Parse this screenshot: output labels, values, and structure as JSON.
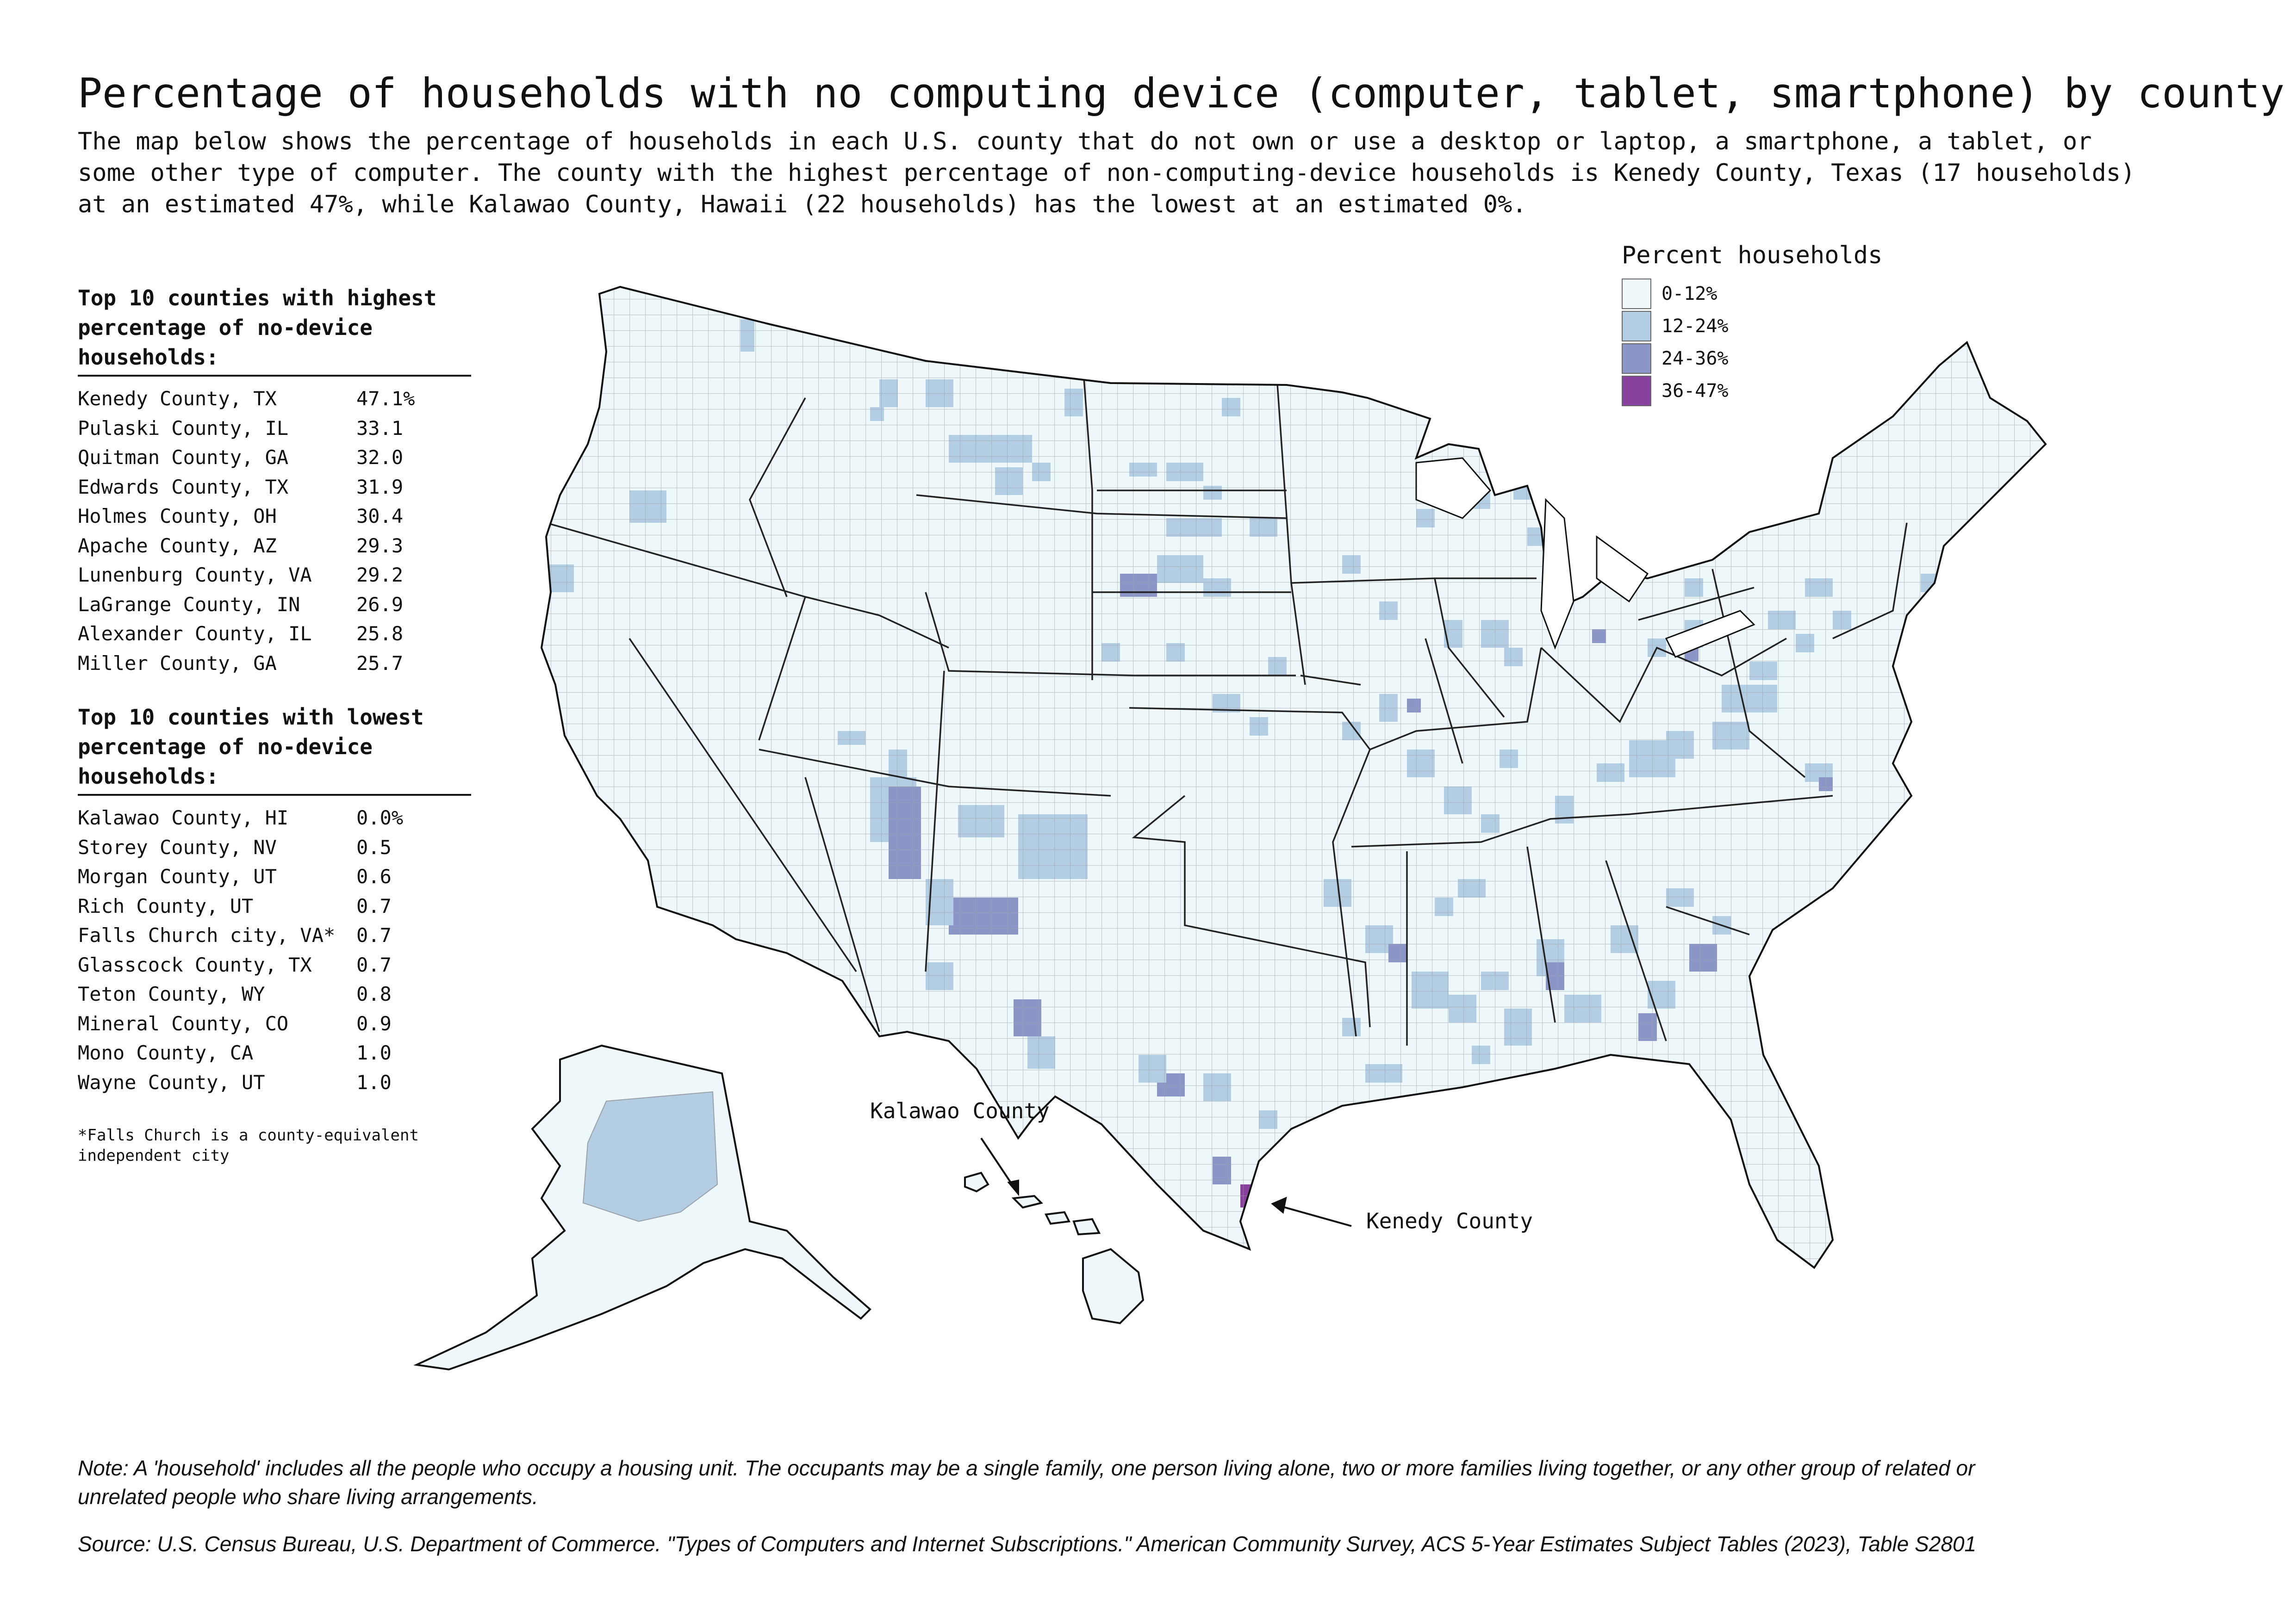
{
  "title": "Percentage of households with no computing device (computer, tablet, smartphone) by county",
  "subtitle_lines": [
    "The map below shows the percentage of households in each U.S. county that do not own or use a desktop or laptop, a smartphone, a tablet, or",
    "some other type of computer. The county with the highest percentage of non-computing-device households is Kenedy County, Texas (17 households)",
    "at an estimated 47%, while Kalawao County, Hawaii (22 households) has the lowest at an estimated 0%."
  ],
  "highest": {
    "heading_lines": [
      "Top 10 counties with highest",
      "percentage of no-device",
      "households:"
    ],
    "rows": [
      {
        "county": "Kenedy County, TX",
        "value": "47.1%"
      },
      {
        "county": "Pulaski County, IL",
        "value": "33.1"
      },
      {
        "county": "Quitman County, GA",
        "value": "32.0"
      },
      {
        "county": "Edwards County, TX",
        "value": "31.9"
      },
      {
        "county": "Holmes County, OH",
        "value": "30.4"
      },
      {
        "county": "Apache County, AZ",
        "value": "29.3"
      },
      {
        "county": "Lunenburg County, VA",
        "value": "29.2"
      },
      {
        "county": "LaGrange County, IN",
        "value": "26.9"
      },
      {
        "county": "Alexander County, IL",
        "value": "25.8"
      },
      {
        "county": "Miller County, GA",
        "value": "25.7"
      }
    ]
  },
  "lowest": {
    "heading_lines": [
      "Top 10 counties with lowest",
      "percentage of no-device",
      "households:"
    ],
    "rows": [
      {
        "county": "Kalawao County, HI",
        "value": "0.0%"
      },
      {
        "county": "Storey County, NV",
        "value": "0.5"
      },
      {
        "county": "Morgan County, UT",
        "value": "0.6"
      },
      {
        "county": "Rich County, UT",
        "value": "0.7"
      },
      {
        "county": "Falls Church city, VA*",
        "value": "0.7"
      },
      {
        "county": "Glasscock County, TX",
        "value": "0.7"
      },
      {
        "county": "Teton County, WY",
        "value": "0.8"
      },
      {
        "county": "Mineral County, CO",
        "value": "0.9"
      },
      {
        "county": "Mono County, CA",
        "value": "1.0"
      },
      {
        "county": "Wayne County, UT",
        "value": "1.0"
      }
    ]
  },
  "footnote_lines": [
    "*Falls Church is a county-equivalent",
    "independent city"
  ],
  "legend": {
    "title": "Percent households",
    "bins": [
      {
        "label": "0-12%",
        "color": "#eef8fa"
      },
      {
        "label": "12-24%",
        "color": "#b3cde3"
      },
      {
        "label": "24-36%",
        "color": "#8c96c6"
      },
      {
        "label": "36-47%",
        "color": "#88419d"
      }
    ]
  },
  "callouts": {
    "kalawao": "Kalawao County",
    "kenedy": "Kenedy County"
  },
  "note_lines": [
    "Note: A 'household' includes all the people who occupy a housing unit. The occupants may be a single family, one person living alone, two or more families living together, or any other group of related or",
    "unrelated people who share living arrangements."
  ],
  "source": "Source: U.S. Census Bureau, U.S. Department of Commerce. \"Types of Computers and Internet Subscriptions.\" American Community Survey, ACS 5-Year Estimates Subject Tables (2023), Table S2801"
}
